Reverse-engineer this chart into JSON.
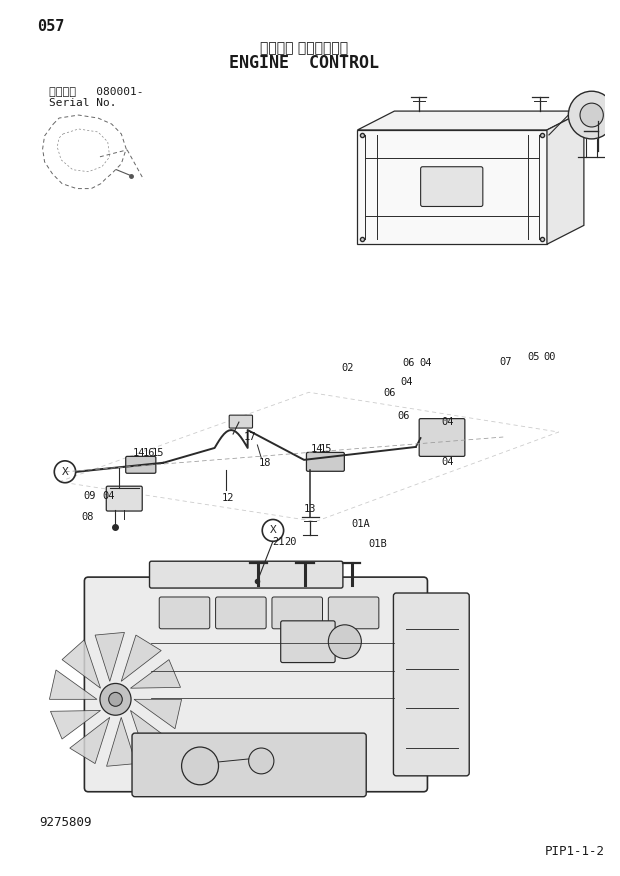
{
  "page_number": "057",
  "title_japanese": "エンジン コントロール",
  "title_english": "ENGINE  CONTROL",
  "serial_label": "適用号機   080001-",
  "serial_label2": "Serial No.",
  "doc_number": "9275809",
  "page_ref": "PIP1-1-2",
  "background_color": "#ffffff",
  "text_color": "#1a1a1a",
  "line_color": "#2a2a2a",
  "figsize": [
    6.2,
    8.76
  ],
  "dpi": 100
}
